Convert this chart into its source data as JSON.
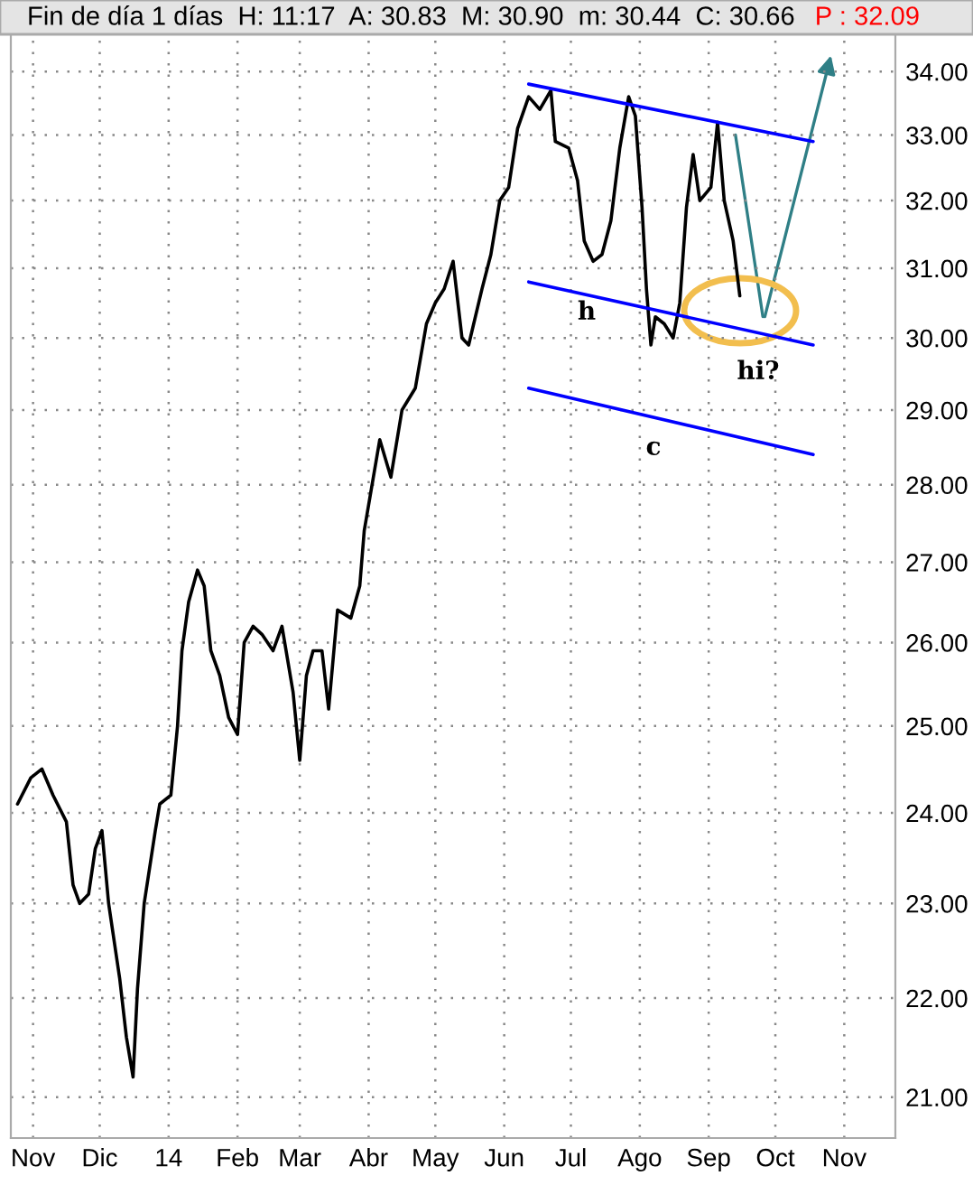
{
  "chart_data": {
    "type": "line",
    "title": "Fin de día 1 días  H: 11:17  A: 30.83  M: 30.90  m: 30.44  C: 30.66",
    "subtitle": "P : 32.09",
    "series": [
      {
        "color": "#000000",
        "x": [
          "2013-10-25",
          "2013-10-31",
          "2013-11-05",
          "2013-11-10",
          "2013-11-16",
          "2013-11-19",
          "2013-11-22",
          "2013-11-26",
          "2013-11-29",
          "2013-12-02",
          "2013-12-05",
          "2013-12-10",
          "2013-12-13",
          "2013-12-16",
          "2013-12-18",
          "2013-12-21",
          "2013-12-26",
          "2013-12-28",
          "2014-01-02",
          "2014-01-05",
          "2014-01-07",
          "2014-01-10",
          "2014-01-14",
          "2014-01-17",
          "2014-01-20",
          "2014-01-24",
          "2014-01-28",
          "2014-02-01",
          "2014-02-04",
          "2014-02-08",
          "2014-02-12",
          "2014-02-17",
          "2014-02-21",
          "2014-02-26",
          "2014-03-01",
          "2014-03-04",
          "2014-03-07",
          "2014-03-11",
          "2014-03-14",
          "2014-03-18",
          "2014-03-24",
          "2014-03-28",
          "2014-03-30",
          "2014-04-06",
          "2014-04-11",
          "2014-04-16",
          "2014-04-22",
          "2014-04-27",
          "2014-05-01",
          "2014-05-05",
          "2014-05-09",
          "2014-05-13",
          "2014-05-16",
          "2014-05-22",
          "2014-05-26",
          "2014-05-30",
          "2014-06-03",
          "2014-06-07",
          "2014-06-12",
          "2014-06-17",
          "2014-06-22",
          "2014-06-24",
          "2014-06-30",
          "2014-07-04",
          "2014-07-07",
          "2014-07-11",
          "2014-07-15",
          "2014-07-19",
          "2014-07-23",
          "2014-07-27",
          "2014-07-30",
          "2014-08-02",
          "2014-08-04",
          "2014-08-06",
          "2014-08-08",
          "2014-08-12",
          "2014-08-16",
          "2014-08-19",
          "2014-08-22",
          "2014-08-25",
          "2014-08-28",
          "2014-09-02",
          "2014-09-05",
          "2014-09-08",
          "2014-09-10",
          "2014-09-12",
          "2014-09-15"
        ],
        "values": [
          24.1,
          24.4,
          24.5,
          24.2,
          23.9,
          23.2,
          23.0,
          23.1,
          23.6,
          23.8,
          23.0,
          22.2,
          21.6,
          21.2,
          22.1,
          23.0,
          23.8,
          24.1,
          24.2,
          25.0,
          25.9,
          26.5,
          26.9,
          26.7,
          25.9,
          25.6,
          25.1,
          24.9,
          26.0,
          26.2,
          26.1,
          25.9,
          26.2,
          25.4,
          24.6,
          25.6,
          25.9,
          25.9,
          25.2,
          26.4,
          26.3,
          26.7,
          27.4,
          28.6,
          28.1,
          29.0,
          29.3,
          30.2,
          30.5,
          30.7,
          31.1,
          30.0,
          29.9,
          30.7,
          31.2,
          32.0,
          32.2,
          33.1,
          33.6,
          33.4,
          33.7,
          32.9,
          32.8,
          32.3,
          31.4,
          31.1,
          31.2,
          31.7,
          32.8,
          33.6,
          33.3,
          31.9,
          30.7,
          29.9,
          30.3,
          30.2,
          30.0,
          30.5,
          31.9,
          32.7,
          32.0,
          32.2,
          33.2,
          32.0,
          31.7,
          31.4,
          30.6
        ]
      },
      {
        "color": "#0000ff",
        "x": [
          "2014-06-12",
          "2014-10-18"
        ],
        "values": [
          33.8,
          32.9
        ]
      },
      {
        "color": "#0000ff",
        "x": [
          "2014-06-12",
          "2014-10-18"
        ],
        "values": [
          30.8,
          29.9
        ]
      },
      {
        "color": "#0000ff",
        "x": [
          "2014-06-12",
          "2014-10-18"
        ],
        "values": [
          29.3,
          28.4
        ]
      }
    ],
    "annotations": [
      "h",
      "c",
      "hi?"
    ],
    "log": "y",
    "xlim": [
      "2013-10-22",
      "2014-11-24"
    ],
    "xticks": [
      {
        "value": "2013-11-01",
        "label": "Nov"
      },
      {
        "value": "2013-12-01",
        "label": "Dic"
      },
      {
        "value": "2014-01-01",
        "label": "14"
      },
      {
        "value": "2014-02-01",
        "label": "Feb"
      },
      {
        "value": "2014-03-01",
        "label": "Mar"
      },
      {
        "value": "2014-04-01",
        "label": "Abr"
      },
      {
        "value": "2014-05-01",
        "label": "May"
      },
      {
        "value": "2014-06-01",
        "label": "Jun"
      },
      {
        "value": "2014-07-01",
        "label": "Jul"
      },
      {
        "value": "2014-08-01",
        "label": "Ago"
      },
      {
        "value": "2014-09-01",
        "label": "Sep"
      },
      {
        "value": "2014-10-01",
        "label": "Oct"
      },
      {
        "value": "2014-11-01",
        "label": "Nov"
      }
    ],
    "ylim": [
      20.6,
      34.6
    ],
    "yticks": [
      {
        "value": 21,
        "label": "21.00"
      },
      {
        "value": 22,
        "label": "22.00"
      },
      {
        "value": 23,
        "label": "23.00"
      },
      {
        "value": 24,
        "label": "24.00"
      },
      {
        "value": 25,
        "label": "25.00"
      },
      {
        "value": 26,
        "label": "26.00"
      },
      {
        "value": 27,
        "label": "27.00"
      },
      {
        "value": 28,
        "label": "28.00"
      },
      {
        "value": 29,
        "label": "29.00"
      },
      {
        "value": 30,
        "label": "30.00"
      },
      {
        "value": 31,
        "label": "31.00"
      },
      {
        "value": 32,
        "label": "32.00"
      },
      {
        "value": 33,
        "label": "33.00"
      },
      {
        "value": 34,
        "label": "34.00"
      }
    ],
    "grid": true
  }
}
